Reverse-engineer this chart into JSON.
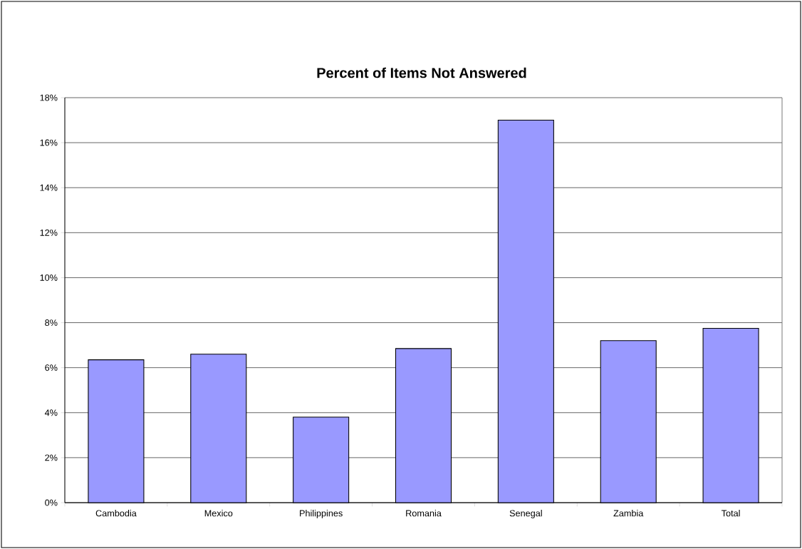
{
  "chart_data": {
    "type": "bar",
    "title": "Percent of Items Not Answered",
    "categories": [
      "Cambodia",
      "Mexico",
      "Philippines",
      "Romania",
      "Senegal",
      "Zambia",
      "Total"
    ],
    "values": [
      6.35,
      6.6,
      3.8,
      6.85,
      17.0,
      7.2,
      7.75
    ],
    "color": "#9999ff",
    "ylim": [
      0,
      18
    ],
    "yticks": [
      {
        "value": 0,
        "label": "0%"
      },
      {
        "value": 2,
        "label": "2%"
      },
      {
        "value": 4,
        "label": "4%"
      },
      {
        "value": 6,
        "label": "6%"
      },
      {
        "value": 8,
        "label": "8%"
      },
      {
        "value": 10,
        "label": "10%"
      },
      {
        "value": 12,
        "label": "12%"
      },
      {
        "value": 14,
        "label": "14%"
      },
      {
        "value": 16,
        "label": "16%"
      },
      {
        "value": 18,
        "label": "18%"
      }
    ],
    "grid": "y"
  }
}
